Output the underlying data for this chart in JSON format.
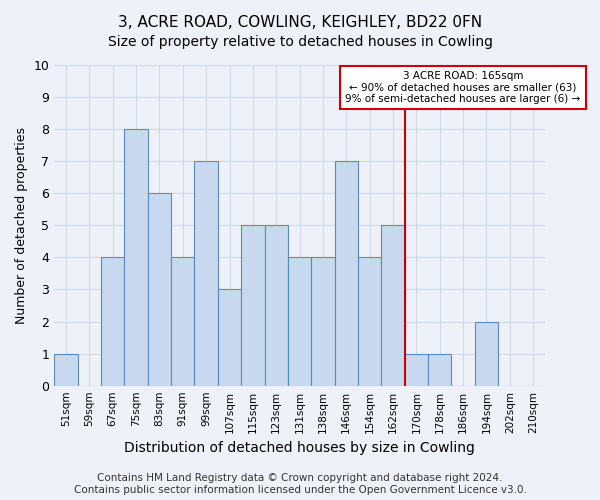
{
  "title1": "3, ACRE ROAD, COWLING, KEIGHLEY, BD22 0FN",
  "title2": "Size of property relative to detached houses in Cowling",
  "xlabel": "Distribution of detached houses by size in Cowling",
  "ylabel": "Number of detached properties",
  "categories": [
    "51sqm",
    "59sqm",
    "67sqm",
    "75sqm",
    "83sqm",
    "91sqm",
    "99sqm",
    "107sqm",
    "115sqm",
    "123sqm",
    "131sqm",
    "138sqm",
    "146sqm",
    "154sqm",
    "162sqm",
    "170sqm",
    "178sqm",
    "186sqm",
    "194sqm",
    "202sqm",
    "210sqm"
  ],
  "bar_heights": [
    1,
    0,
    4,
    8,
    6,
    4,
    7,
    3,
    5,
    5,
    4,
    4,
    7,
    4,
    5,
    1,
    1,
    0,
    2,
    0,
    0
  ],
  "bar_color": "#c8d9ef",
  "bar_edge_color": "#5a8abf",
  "grid_color": "#d0d8e8",
  "background_color": "#eef2f8",
  "red_line_x": 14.5,
  "annotation_text": "3 ACRE ROAD: 165sqm\n← 90% of detached houses are smaller (63)\n9% of semi-detached houses are larger (6) →",
  "annotation_box_color": "#ffffff",
  "annotation_edge_color": "#cc0000",
  "ylim": [
    0,
    10
  ],
  "yticks": [
    0,
    1,
    2,
    3,
    4,
    5,
    6,
    7,
    8,
    9,
    10
  ],
  "footer": "Contains HM Land Registry data © Crown copyright and database right 2024.\nContains public sector information licensed under the Open Government Licence v3.0.",
  "title1_fontsize": 11,
  "title2_fontsize": 10,
  "xlabel_fontsize": 10,
  "ylabel_fontsize": 9,
  "footer_fontsize": 7.5,
  "tick_fontsize": 7.5,
  "ytick_fontsize": 9
}
